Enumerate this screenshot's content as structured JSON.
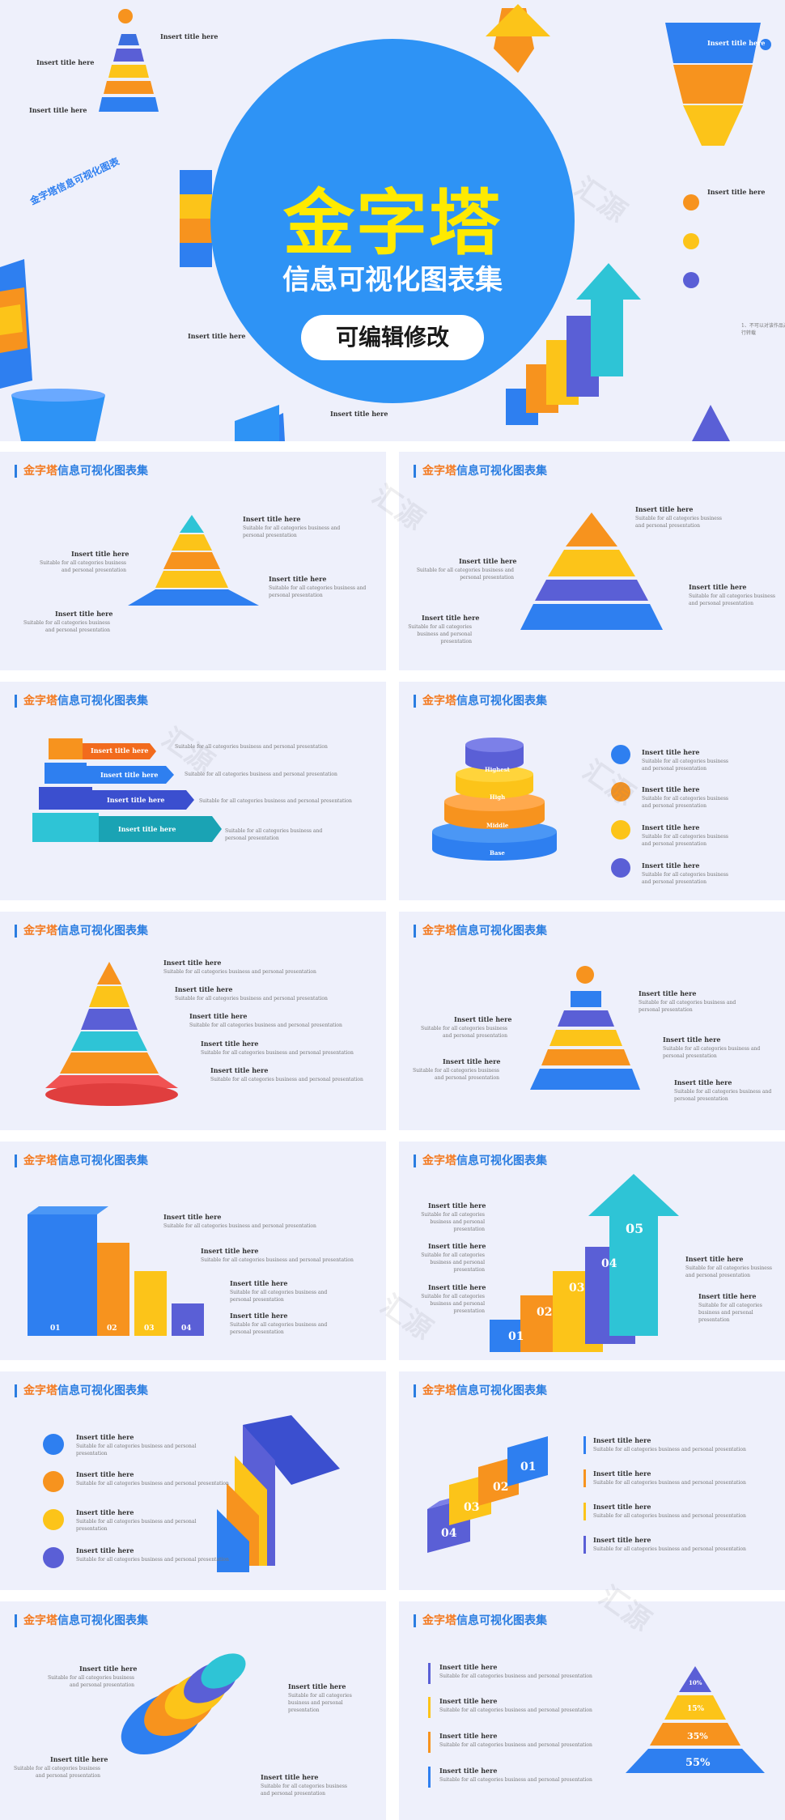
{
  "hero": {
    "title": "金字塔",
    "subtitle": "信息可视化图表集",
    "button": "可编辑修改",
    "bg_color": "#eef0fb",
    "circle_color": "#2e93f5",
    "title_color": "#ffea00"
  },
  "slide_header": {
    "accent": "金字塔",
    "rest": "信息可视化图表集"
  },
  "common": {
    "item_title": "Insert title here",
    "item_desc": "Suitable for all categories business and personal presentation"
  },
  "numbers": [
    "01",
    "02",
    "03",
    "04",
    "05"
  ],
  "stack_labels": [
    "Highest",
    "High",
    "Middle",
    "Base"
  ],
  "percentages": [
    "10%",
    "15%",
    "35%",
    "55%"
  ],
  "hero_bits": {
    "mini_title": "Insert title here",
    "cn_small": "金字塔信息可视化图表",
    "cn_note": "1、不可以对该作品进行转载"
  },
  "watermark": "汇源",
  "colors": {
    "blue": "#2e7ff0",
    "orange": "#f7931e",
    "yellow": "#fcc419",
    "indigo": "#5a5fd6",
    "cyan": "#2ec4d6",
    "red": "#f05252"
  }
}
